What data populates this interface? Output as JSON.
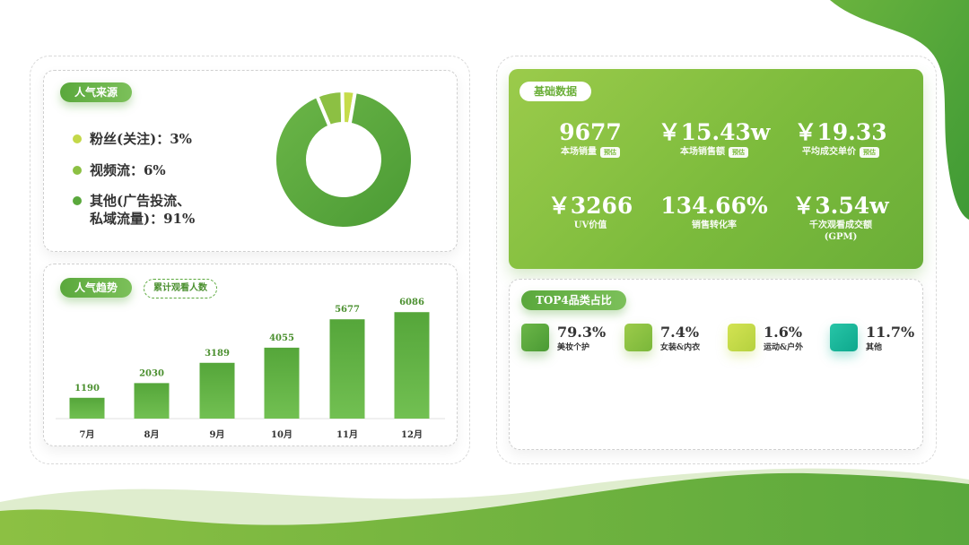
{
  "colors": {
    "green_dark": "#4e9a36",
    "green_mid": "#6aae38",
    "green_light": "#9bcb4b",
    "lime": "#c6dc4a",
    "teal": "#19b59a"
  },
  "left": {
    "source": {
      "title": "人气来源",
      "legend": [
        {
          "text": "粉丝(关注)：3%",
          "color": "#c3d849"
        },
        {
          "text": "视频流：6%",
          "color": "#8cc043"
        },
        {
          "text": "其他(广告投流、\n私域流量)：91%",
          "color": "#5aa83c"
        }
      ]
    },
    "trend": {
      "title": "人气趋势",
      "tag": "累计观看人数"
    }
  },
  "right": {
    "basic": {
      "title": "基础数据",
      "metrics": [
        {
          "value": "9677",
          "label": "本场销量",
          "tag": "预估"
        },
        {
          "value": "￥15.43w",
          "label": "本场销售额",
          "tag": "预估"
        },
        {
          "value": "￥19.33",
          "label": "平均成交单价",
          "tag": "预估"
        },
        {
          "value": "￥3266",
          "label": "UV价值"
        },
        {
          "value": "134.66%",
          "label": "销售转化率"
        },
        {
          "value": "￥3.54w",
          "label": "千次观看成交额\n(GPM)"
        }
      ]
    },
    "top4": {
      "title": "TOP4品类占比",
      "items": [
        {
          "pct": "79.3%",
          "name": "美妆个护",
          "color": "#5aa83c"
        },
        {
          "pct": "7.4%",
          "name": "女装&内衣",
          "color": "#8cc043"
        },
        {
          "pct": "1.6%",
          "name": "运动&户外",
          "color": "#c6dc4a"
        },
        {
          "pct": "11.7%",
          "name": "其他",
          "color": "#19b59a"
        }
      ]
    }
  },
  "chart_data": [
    {
      "type": "pie",
      "variant": "donut",
      "categories": [
        "粉丝(关注)",
        "视频流",
        "其他(广告投流、私域流量)"
      ],
      "values": [
        3,
        6,
        91
      ]
    },
    {
      "type": "bar",
      "categories": [
        "7月",
        "8月",
        "9月",
        "10月",
        "11月",
        "12月"
      ],
      "values": [
        1190,
        2030,
        3189,
        4055,
        5677,
        6086
      ],
      "ylim": [
        0,
        6200
      ]
    }
  ]
}
